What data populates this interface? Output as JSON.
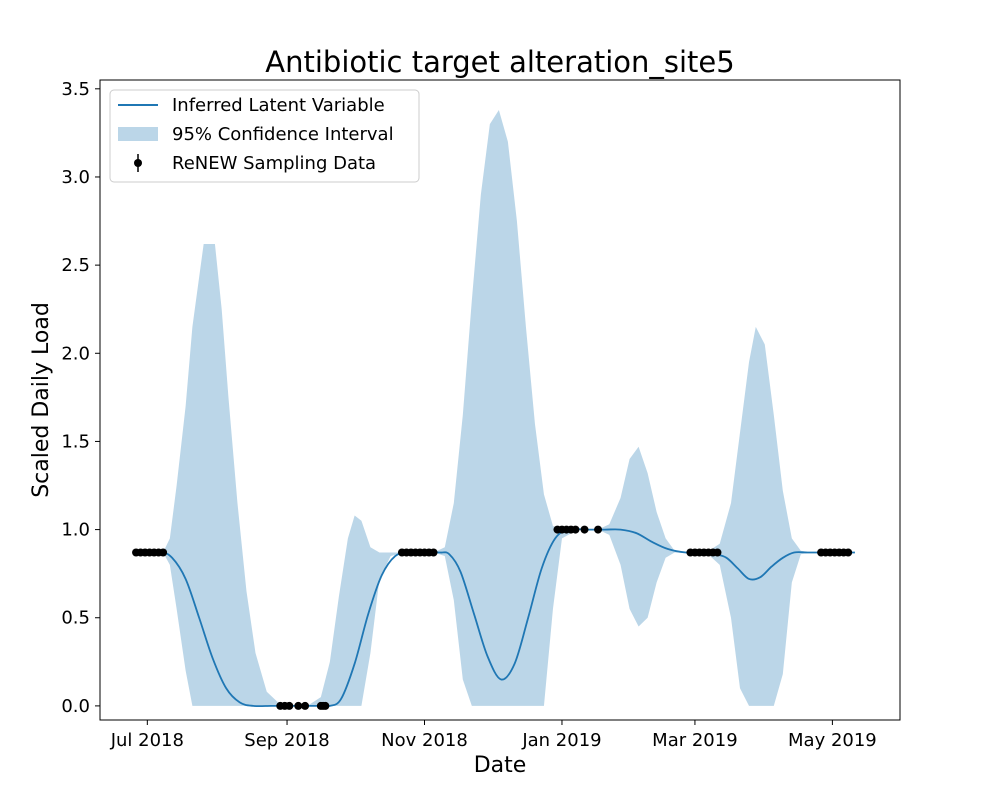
{
  "chart_data": {
    "type": "line",
    "title": "Antibiotic target alteration_site5",
    "xlabel": "Date",
    "ylabel": "Scaled Daily Load",
    "xlim": [
      "2018-06-10",
      "2019-05-31"
    ],
    "ylim": [
      -0.08,
      3.55
    ],
    "grid": false,
    "legend_position": "top-left",
    "xticks": [
      {
        "date": "2018-07-01",
        "label": "Jul 2018"
      },
      {
        "date": "2018-09-01",
        "label": "Sep 2018"
      },
      {
        "date": "2018-11-01",
        "label": "Nov 2018"
      },
      {
        "date": "2019-01-01",
        "label": "Jan 2019"
      },
      {
        "date": "2019-03-01",
        "label": "Mar 2019"
      },
      {
        "date": "2019-05-01",
        "label": "May 2019"
      }
    ],
    "yticks": [
      "0.0",
      "0.5",
      "1.0",
      "1.5",
      "2.0",
      "2.5",
      "3.0",
      "3.5"
    ],
    "colors": {
      "line": "#1f77b4",
      "band": "#1f77b4",
      "points": "#000000"
    },
    "series": [
      {
        "name": "Inferred Latent Variable",
        "kind": "line",
        "x": [
          "2018-06-26",
          "2018-07-07",
          "2018-07-12",
          "2018-07-18",
          "2018-07-24",
          "2018-07-30",
          "2018-08-05",
          "2018-08-11",
          "2018-08-17",
          "2018-08-25",
          "2018-09-01",
          "2018-09-08",
          "2018-09-15",
          "2018-09-20",
          "2018-09-25",
          "2018-10-01",
          "2018-10-07",
          "2018-10-13",
          "2018-10-19",
          "2018-10-25",
          "2018-11-01",
          "2018-11-08",
          "2018-11-12",
          "2018-11-17",
          "2018-11-23",
          "2018-11-29",
          "2018-12-05",
          "2018-12-11",
          "2018-12-17",
          "2018-12-23",
          "2018-12-29",
          "2019-01-04",
          "2019-01-12",
          "2019-01-20",
          "2019-01-27",
          "2019-02-03",
          "2019-02-10",
          "2019-02-17",
          "2019-02-25",
          "2019-03-05",
          "2019-03-10",
          "2019-03-15",
          "2019-03-20",
          "2019-03-25",
          "2019-03-30",
          "2019-04-04",
          "2019-04-09",
          "2019-04-14",
          "2019-04-20",
          "2019-04-26",
          "2019-05-01",
          "2019-05-11"
        ],
        "y": [
          0.87,
          0.87,
          0.84,
          0.72,
          0.5,
          0.27,
          0.1,
          0.02,
          0.0,
          0.0,
          0.0,
          0.0,
          0.0,
          0.0,
          0.04,
          0.24,
          0.52,
          0.74,
          0.85,
          0.87,
          0.87,
          0.87,
          0.86,
          0.76,
          0.52,
          0.28,
          0.15,
          0.24,
          0.5,
          0.78,
          0.95,
          1.0,
          1.0,
          1.0,
          1.0,
          0.98,
          0.93,
          0.89,
          0.87,
          0.87,
          0.86,
          0.84,
          0.78,
          0.72,
          0.73,
          0.79,
          0.84,
          0.87,
          0.87,
          0.87,
          0.87,
          0.87
        ]
      },
      {
        "name": "95% Confidence Interval",
        "kind": "band",
        "x": [
          "2018-06-26",
          "2018-07-08",
          "2018-07-11",
          "2018-07-14",
          "2018-07-18",
          "2018-07-21",
          "2018-07-26",
          "2018-07-31",
          "2018-08-03",
          "2018-08-06",
          "2018-08-10",
          "2018-08-14",
          "2018-08-18",
          "2018-08-23",
          "2018-08-28",
          "2018-09-03",
          "2018-09-10",
          "2018-09-16",
          "2018-09-20",
          "2018-09-24",
          "2018-09-28",
          "2018-10-01",
          "2018-10-04",
          "2018-10-08",
          "2018-10-12",
          "2018-10-17",
          "2018-10-23",
          "2018-10-29",
          "2018-11-05",
          "2018-11-10",
          "2018-11-14",
          "2018-11-18",
          "2018-11-22",
          "2018-11-26",
          "2018-11-30",
          "2018-12-04",
          "2018-12-08",
          "2018-12-12",
          "2018-12-16",
          "2018-12-20",
          "2018-12-24",
          "2018-12-28",
          "2019-01-01",
          "2019-01-08",
          "2019-01-17",
          "2019-01-22",
          "2019-01-27",
          "2019-01-31",
          "2019-02-04",
          "2019-02-08",
          "2019-02-12",
          "2019-02-16",
          "2019-02-20",
          "2019-02-25",
          "2019-03-06",
          "2019-03-12",
          "2019-03-17",
          "2019-03-21",
          "2019-03-25",
          "2019-03-28",
          "2019-04-01",
          "2019-04-05",
          "2019-04-09",
          "2019-04-13",
          "2019-04-17",
          "2019-04-21",
          "2019-04-26",
          "2019-05-03",
          "2019-05-11"
        ],
        "upper": [
          0.87,
          0.87,
          0.95,
          1.25,
          1.7,
          2.15,
          2.62,
          2.62,
          2.25,
          1.75,
          1.15,
          0.65,
          0.3,
          0.08,
          0.02,
          0.0,
          0.0,
          0.05,
          0.25,
          0.62,
          0.95,
          1.08,
          1.05,
          0.9,
          0.87,
          0.87,
          0.87,
          0.87,
          0.87,
          0.9,
          1.15,
          1.65,
          2.3,
          2.9,
          3.3,
          3.38,
          3.2,
          2.75,
          2.15,
          1.6,
          1.2,
          1.02,
          1.0,
          1.0,
          1.0,
          1.03,
          1.18,
          1.4,
          1.47,
          1.32,
          1.1,
          0.95,
          0.88,
          0.87,
          0.87,
          0.92,
          1.15,
          1.55,
          1.95,
          2.15,
          2.05,
          1.65,
          1.22,
          0.95,
          0.88,
          0.87,
          0.87,
          0.87,
          0.87
        ],
        "lower": [
          0.87,
          0.87,
          0.8,
          0.55,
          0.2,
          0.0,
          0.0,
          0.0,
          0.0,
          0.0,
          0.0,
          0.0,
          0.0,
          0.0,
          0.0,
          0.0,
          0.0,
          0.0,
          0.0,
          0.0,
          0.0,
          0.0,
          0.0,
          0.3,
          0.72,
          0.85,
          0.87,
          0.87,
          0.87,
          0.85,
          0.6,
          0.15,
          0.0,
          0.0,
          0.0,
          0.0,
          0.0,
          0.0,
          0.0,
          0.0,
          0.0,
          0.55,
          0.95,
          1.0,
          1.0,
          0.97,
          0.8,
          0.55,
          0.45,
          0.5,
          0.7,
          0.84,
          0.87,
          0.87,
          0.87,
          0.8,
          0.5,
          0.1,
          0.0,
          0.0,
          0.0,
          0.0,
          0.18,
          0.7,
          0.86,
          0.87,
          0.87,
          0.87,
          0.87
        ]
      },
      {
        "name": "ReNEW Sampling Data",
        "kind": "points",
        "x": [
          "2018-06-26",
          "2018-06-28",
          "2018-06-30",
          "2018-07-02",
          "2018-07-04",
          "2018-07-06",
          "2018-07-08",
          "2018-08-29",
          "2018-08-31",
          "2018-09-02",
          "2018-09-06",
          "2018-09-09",
          "2018-09-16",
          "2018-09-17",
          "2018-09-18",
          "2018-10-22",
          "2018-10-24",
          "2018-10-26",
          "2018-10-28",
          "2018-10-30",
          "2018-11-01",
          "2018-11-03",
          "2018-11-05",
          "2018-12-30",
          "2019-01-01",
          "2019-01-03",
          "2019-01-05",
          "2019-01-07",
          "2019-01-11",
          "2019-01-17",
          "2019-02-27",
          "2019-03-01",
          "2019-03-03",
          "2019-03-05",
          "2019-03-07",
          "2019-03-09",
          "2019-03-11",
          "2019-04-26",
          "2019-04-28",
          "2019-04-30",
          "2019-05-02",
          "2019-05-04",
          "2019-05-06",
          "2019-05-08"
        ],
        "y": [
          0.87,
          0.87,
          0.87,
          0.87,
          0.87,
          0.87,
          0.87,
          0.0,
          0.0,
          0.0,
          0.0,
          0.0,
          0.0,
          0.0,
          0.0,
          0.87,
          0.87,
          0.87,
          0.87,
          0.87,
          0.87,
          0.87,
          0.87,
          1.0,
          1.0,
          1.0,
          1.0,
          1.0,
          1.0,
          1.0,
          0.87,
          0.87,
          0.87,
          0.87,
          0.87,
          0.87,
          0.87,
          0.87,
          0.87,
          0.87,
          0.87,
          0.87,
          0.87,
          0.87
        ]
      }
    ]
  }
}
